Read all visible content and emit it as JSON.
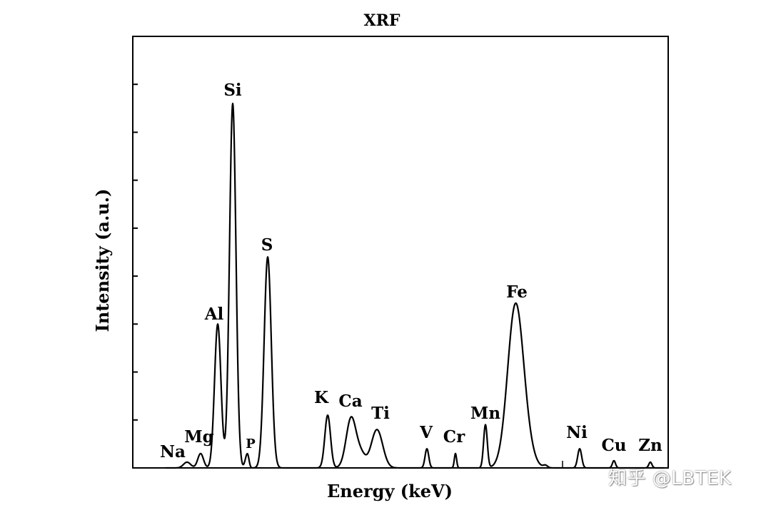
{
  "chart_data": {
    "type": "line",
    "title": "XRF",
    "xlabel": "Energy (keV)",
    "ylabel": "Intensity (a.u.)",
    "x_ticks_labeled": false,
    "y_ticks_labeled": false,
    "ylim": [
      0,
      9
    ],
    "grid": false,
    "legend": "none",
    "line_color": "#000000",
    "peaks": [
      {
        "element": "Na",
        "energy": 1.04,
        "intensity": 0.12
      },
      {
        "element": "Mg",
        "energy": 1.25,
        "intensity": 0.3
      },
      {
        "element": "Al",
        "energy": 1.49,
        "intensity": 3.0
      },
      {
        "element": "Si",
        "energy": 1.74,
        "intensity": 7.6
      },
      {
        "element": "P",
        "energy": 2.01,
        "intensity": 0.25
      },
      {
        "element": "S",
        "energy": 2.31,
        "intensity": 4.4
      },
      {
        "element": "K",
        "energy": 3.31,
        "intensity": 1.1
      },
      {
        "element": "Ca",
        "energy": 3.69,
        "intensity": 1.05
      },
      {
        "element": "Ti",
        "energy": 4.51,
        "intensity": 0.8
      },
      {
        "element": "V",
        "energy": 4.95,
        "intensity": 0.4
      },
      {
        "element": "Cr",
        "energy": 5.41,
        "intensity": 0.3
      },
      {
        "element": "Mn",
        "energy": 5.9,
        "intensity": 0.9
      },
      {
        "element": "Fe",
        "energy": 6.4,
        "intensity": 3.35
      },
      {
        "element": "Ni",
        "energy": 7.48,
        "intensity": 0.4
      },
      {
        "element": "Cu",
        "energy": 8.05,
        "intensity": 0.15
      },
      {
        "element": "Zn",
        "energy": 8.64,
        "intensity": 0.12
      }
    ]
  },
  "watermark": "知乎 @LBTEK"
}
